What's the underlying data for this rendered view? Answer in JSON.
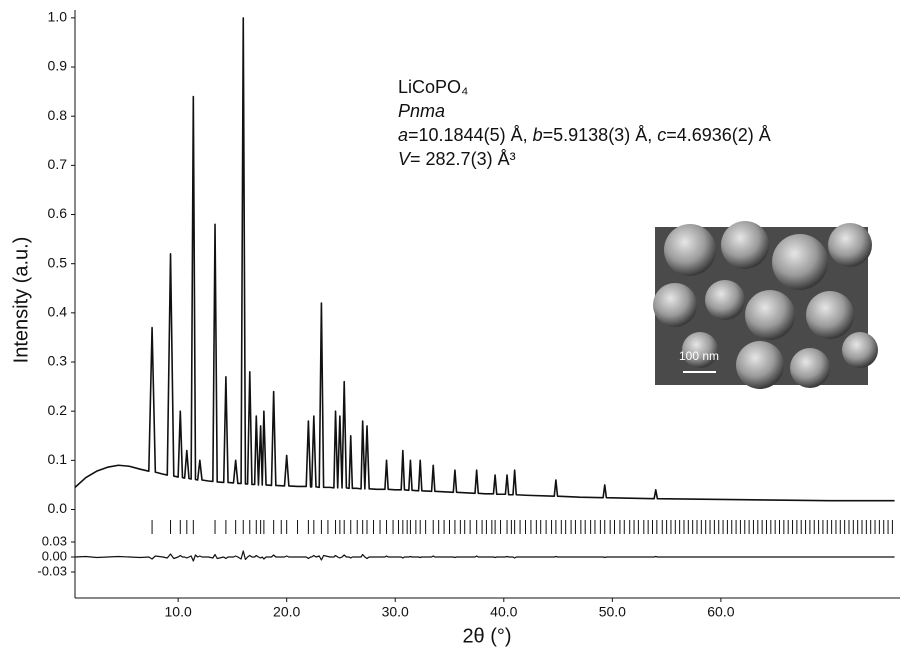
{
  "chart_data": {
    "type": "line",
    "x_label": "2θ (°)",
    "y_label": "Intensity (a.u.)",
    "annotation_lines": [
      [
        {
          "text": "LiCoPO₄"
        }
      ],
      [
        {
          "text": "Pnma",
          "italic": true
        }
      ],
      [
        {
          "text": "a",
          "italic": true
        },
        {
          "text": "=10.1844(5) Å, "
        },
        {
          "text": "b",
          "italic": true
        },
        {
          "text": "=5.9138(3) Å, "
        },
        {
          "text": "c",
          "italic": true
        },
        {
          "text": "=4.6936(2) Å"
        }
      ],
      [
        {
          "text": "V",
          "italic": true
        },
        {
          "text": "= 282.7(3) Å³"
        }
      ]
    ],
    "inset_label": "100 nm",
    "xlim": [
      0.5,
      76.5
    ],
    "xticks": [
      {
        "value": 10,
        "label": "10.0"
      },
      {
        "value": 20,
        "label": "20.0"
      },
      {
        "value": 30,
        "label": "30.0"
      },
      {
        "value": 40,
        "label": "40.0"
      },
      {
        "value": 50,
        "label": "50.0"
      },
      {
        "value": 60,
        "label": "60.0"
      }
    ],
    "ylim": [
      -0.18,
      1.016
    ],
    "yticks": [
      {
        "value": 0,
        "label": "0.0"
      },
      0.1,
      0.2,
      0.3,
      0.4,
      0.5,
      0.6,
      0.7,
      0.8,
      0.9,
      {
        "value": 1,
        "label": "1.0"
      }
    ],
    "y2lim": [
      -0.082,
      1.094
    ],
    "y2ticks": [
      0.03,
      {
        "value": 0,
        "label": "0.00"
      },
      -0.03
    ],
    "x": [
      0.5,
      1.5,
      2.5,
      3.5,
      4.5,
      5.5,
      6.5,
      7.3,
      7.6,
      7.9,
      8.6,
      9.0,
      9.3,
      9.6,
      10.0,
      10.2,
      10.4,
      10.6,
      10.8,
      11.0,
      11.2,
      11.4,
      11.6,
      11.8,
      12.0,
      12.2,
      12.8,
      13.2,
      13.4,
      13.6,
      14.2,
      14.4,
      14.6,
      15.1,
      15.3,
      15.5,
      15.8,
      16.0,
      16.2,
      16.4,
      16.6,
      16.8,
      17.05,
      17.2,
      17.4,
      17.6,
      17.75,
      17.9,
      18.1,
      18.6,
      18.8,
      19.0,
      19.8,
      20.0,
      20.2,
      21.0,
      21.8,
      22.0,
      22.2,
      22.3,
      22.5,
      22.7,
      23.0,
      23.2,
      23.4,
      24.0,
      24.35,
      24.5,
      24.7,
      24.9,
      25.1,
      25.3,
      25.5,
      25.75,
      25.9,
      26.05,
      26.5,
      26.85,
      27.0,
      27.2,
      27.4,
      27.6,
      28.3,
      29.05,
      29.2,
      29.35,
      30.0,
      30.55,
      30.7,
      30.85,
      31.25,
      31.4,
      31.55,
      32.15,
      32.3,
      32.45,
      33.35,
      33.5,
      33.65,
      34.5,
      35.35,
      35.5,
      35.65,
      36.5,
      37.35,
      37.5,
      37.65,
      38.3,
      39.05,
      39.2,
      39.35,
      40.15,
      40.3,
      40.45,
      40.85,
      41.0,
      41.15,
      42.0,
      44.65,
      44.8,
      44.95,
      47.0,
      49.15,
      49.3,
      49.45,
      51.5,
      53.85,
      54.0,
      54.15,
      58.0,
      62.0,
      66.0,
      70.0,
      76.0
    ],
    "series": [
      {
        "color": "#111111",
        "values": [
          0.045,
          0.065,
          0.078,
          0.086,
          0.09,
          0.088,
          0.082,
          0.078,
          0.37,
          0.076,
          0.072,
          0.07,
          0.52,
          0.068,
          0.066,
          0.2,
          0.065,
          0.064,
          0.12,
          0.063,
          0.062,
          0.84,
          0.061,
          0.06,
          0.1,
          0.06,
          0.058,
          0.057,
          0.58,
          0.056,
          0.055,
          0.27,
          0.055,
          0.054,
          0.1,
          0.053,
          0.053,
          1.0,
          0.052,
          0.052,
          0.28,
          0.051,
          0.051,
          0.19,
          0.05,
          0.17,
          0.05,
          0.2,
          0.05,
          0.049,
          0.24,
          0.049,
          0.048,
          0.11,
          0.048,
          0.047,
          0.047,
          0.18,
          0.046,
          0.046,
          0.19,
          0.046,
          0.045,
          0.42,
          0.045,
          0.045,
          0.044,
          0.2,
          0.044,
          0.19,
          0.044,
          0.26,
          0.044,
          0.043,
          0.15,
          0.043,
          0.043,
          0.042,
          0.18,
          0.042,
          0.17,
          0.042,
          0.041,
          0.041,
          0.1,
          0.041,
          0.04,
          0.04,
          0.12,
          0.04,
          0.039,
          0.1,
          0.039,
          0.038,
          0.1,
          0.038,
          0.037,
          0.09,
          0.037,
          0.036,
          0.035,
          0.08,
          0.035,
          0.034,
          0.033,
          0.08,
          0.033,
          0.032,
          0.032,
          0.07,
          0.031,
          0.031,
          0.07,
          0.03,
          0.03,
          0.08,
          0.03,
          0.029,
          0.027,
          0.06,
          0.027,
          0.025,
          0.024,
          0.05,
          0.024,
          0.023,
          0.022,
          0.04,
          0.022,
          0.021,
          0.02,
          0.019,
          0.018,
          0.018
        ]
      },
      {
        "color": "#111111",
        "axis": "y2",
        "values": [
          0,
          0.001,
          -0.001,
          0,
          0.001,
          0,
          -0.001,
          0,
          -0.004,
          0.002,
          0,
          -0.002,
          0.006,
          -0.003,
          0,
          0.003,
          0,
          0,
          -0.002,
          0,
          0.002,
          -0.008,
          0.004,
          0,
          0.002,
          0,
          0,
          -0.002,
          0.005,
          -0.003,
          0,
          -0.003,
          0,
          0,
          0.002,
          0,
          -0.004,
          0.012,
          -0.005,
          0,
          0.003,
          0,
          0,
          0.003,
          0,
          -0.002,
          0,
          -0.004,
          0,
          0,
          0.004,
          0,
          0,
          0.002,
          0,
          0,
          0,
          -0.003,
          0,
          0,
          0.003,
          0,
          0.002,
          -0.006,
          0.003,
          0,
          0,
          0.003,
          0,
          -0.002,
          0,
          0.004,
          0,
          0,
          -0.002,
          0,
          0,
          0,
          0.005,
          0,
          -0.003,
          0,
          0,
          0,
          0.002,
          0,
          0,
          0,
          -0.002,
          0,
          0,
          0.001,
          0,
          0,
          -0.001,
          0,
          0,
          0.002,
          0,
          0,
          0,
          -0.001,
          0,
          0,
          0,
          0.002,
          0,
          0,
          0,
          -0.001,
          0,
          0,
          0.001,
          0,
          0,
          -0.002,
          0,
          0,
          0,
          0.001,
          0,
          0,
          0,
          -0.001,
          0,
          0,
          0,
          0.001,
          0,
          0,
          0,
          0,
          0,
          0
        ]
      }
    ],
    "reflections": [
      7.6,
      9.3,
      10.2,
      10.8,
      11.4,
      13.4,
      14.4,
      15.3,
      16.0,
      16.6,
      17.2,
      17.6,
      17.9,
      18.8,
      19.5,
      20.0,
      21.0,
      22.0,
      22.5,
      23.2,
      23.8,
      24.5,
      24.9,
      25.3,
      25.9,
      26.5,
      27.0,
      27.4,
      28.0,
      28.6,
      29.2,
      29.8,
      30.3,
      30.7,
      31.1,
      31.4,
      31.9,
      32.3,
      32.8,
      33.5,
      34.0,
      34.5,
      35.0,
      35.5,
      36.0,
      36.4,
      36.9,
      37.5,
      38.0,
      38.4,
      38.9,
      39.2,
      39.7,
      40.3,
      40.7,
      41.0,
      41.5,
      42.0,
      42.5,
      43.0,
      43.4,
      43.9,
      44.4,
      44.8,
      45.3,
      45.7,
      46.2,
      46.6,
      47.1,
      47.5,
      48.0,
      48.4,
      48.9,
      49.3,
      49.8,
      50.2,
      50.7,
      51.1,
      51.6,
      52.0,
      52.4,
      52.9,
      53.3,
      53.7,
      54.1,
      54.6,
      55.0,
      55.4,
      55.8,
      56.2,
      56.6,
      57.0,
      57.4,
      57.8,
      58.2,
      58.6,
      59.0,
      59.4,
      59.8,
      60.2,
      60.6,
      61.0,
      61.4,
      61.8,
      62.2,
      62.6,
      63.0,
      63.4,
      63.8,
      64.2,
      64.6,
      65.0,
      65.4,
      65.8,
      66.2,
      66.6,
      67.0,
      67.4,
      67.8,
      68.2,
      68.6,
      69.0,
      69.4,
      69.8,
      70.2,
      70.6,
      71.0,
      71.4,
      71.8,
      72.2,
      72.6,
      73.0,
      73.4,
      73.8,
      74.2,
      74.6,
      75.0,
      75.4,
      75.8
    ]
  }
}
